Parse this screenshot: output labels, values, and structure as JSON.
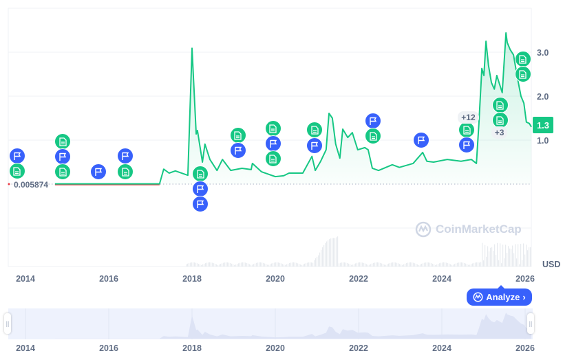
{
  "chart_data": {
    "type": "line",
    "currency_label": "USD",
    "y_ticks": [
      "1.0",
      "2.0",
      "3.0"
    ],
    "y_tick_values": [
      1,
      2,
      3
    ],
    "x_ticks": [
      "2014",
      "2016",
      "2018",
      "2020",
      "2022",
      "2024",
      "2026"
    ],
    "x_tick_values": [
      2014,
      2016,
      2018,
      2020,
      2022,
      2024,
      2026
    ],
    "ylim": [
      0,
      3.6
    ],
    "xlim": [
      2013.6,
      2026.15
    ],
    "baseline_label": "0.005874",
    "baseline_value": 0.005874,
    "current_price_label": "1.3",
    "colors": {
      "line": "#16c784",
      "below_baseline": "#ea3943",
      "flag": "#3861fb",
      "doc": "#16c784",
      "analyze": "#3861fb"
    },
    "series": [
      {
        "x": [
          2014.71,
          2015.5,
          2016.5,
          2017.22,
          2017.32,
          2017.45,
          2017.6,
          2017.9,
          2018.0,
          2018.1,
          2018.13,
          2018.25,
          2018.31,
          2018.43,
          2018.6,
          2018.73,
          2018.93,
          2019.2,
          2019.42,
          2019.45,
          2019.67,
          2020.0,
          2020.2,
          2020.33,
          2020.66,
          2020.88,
          2020.96,
          2021.09,
          2021.22,
          2021.29,
          2021.37,
          2021.45,
          2021.55,
          2021.62,
          2021.74,
          2021.85,
          2021.98,
          2022.15,
          2022.23,
          2022.33,
          2022.48,
          2022.81,
          2022.98,
          2023.31,
          2023.54,
          2023.64,
          2023.8,
          2024.13,
          2024.46,
          2024.71,
          2024.83,
          2024.89,
          2024.96,
          2025.01,
          2025.06,
          2025.12,
          2025.19,
          2025.26,
          2025.32,
          2025.45,
          2025.54,
          2025.57,
          2025.64,
          2025.72,
          2025.82,
          2025.9,
          2025.97,
          2026.03,
          2026.1,
          2026.15
        ],
        "y": [
          0.006,
          0.006,
          0.006,
          0.006,
          0.34,
          0.25,
          0.3,
          0.2,
          3.09,
          1.14,
          1.22,
          0.5,
          0.91,
          0.56,
          0.31,
          0.56,
          0.31,
          0.36,
          0.33,
          0.47,
          0.28,
          0.17,
          0.19,
          0.25,
          0.25,
          0.63,
          0.31,
          0.52,
          0.78,
          1.61,
          1.5,
          0.91,
          0.59,
          1.25,
          1.06,
          1.17,
          0.78,
          0.83,
          0.78,
          0.36,
          0.31,
          0.44,
          0.38,
          0.47,
          0.72,
          0.52,
          0.5,
          0.56,
          0.52,
          0.56,
          0.47,
          1.38,
          2.63,
          2.47,
          3.25,
          2.7,
          2.31,
          2.16,
          2.47,
          2.08,
          3.44,
          3.22,
          3.06,
          2.94,
          2.39,
          2.0,
          1.84,
          1.41,
          1.38,
          1.3
        ]
      }
    ],
    "events": [
      {
        "date": 2013.8,
        "icons": [
          "flag",
          "doc"
        ]
      },
      {
        "date": 2014.9,
        "icons": [
          "doc",
          "flag",
          "doc"
        ]
      },
      {
        "date": 2015.75,
        "icons": [
          "flag"
        ]
      },
      {
        "date": 2016.4,
        "icons": [
          "flag",
          "doc"
        ]
      },
      {
        "date": 2018.2,
        "icons": [
          "doc",
          "flag",
          "flag"
        ]
      },
      {
        "date": 2019.1,
        "icons": [
          "doc",
          "flag"
        ]
      },
      {
        "date": 2019.95,
        "icons": [
          "doc",
          "flag",
          "doc"
        ]
      },
      {
        "date": 2020.95,
        "icons": [
          "doc",
          "flag"
        ]
      },
      {
        "date": 2022.35,
        "icons": [
          "flag",
          "doc"
        ]
      },
      {
        "date": 2023.5,
        "icons": [
          "flag"
        ]
      },
      {
        "date": 2024.6,
        "icons": [
          "doc",
          "flag"
        ],
        "more": "+12"
      },
      {
        "date": 2025.4,
        "icons": [
          "doc",
          "doc"
        ],
        "more": "+3"
      },
      {
        "date": 2025.95,
        "icons": [
          "doc",
          "doc"
        ]
      }
    ]
  },
  "watermark": "CoinMarketCap",
  "analyze_button": {
    "label": "Analyze",
    "icon": "chevron-right-icon"
  }
}
